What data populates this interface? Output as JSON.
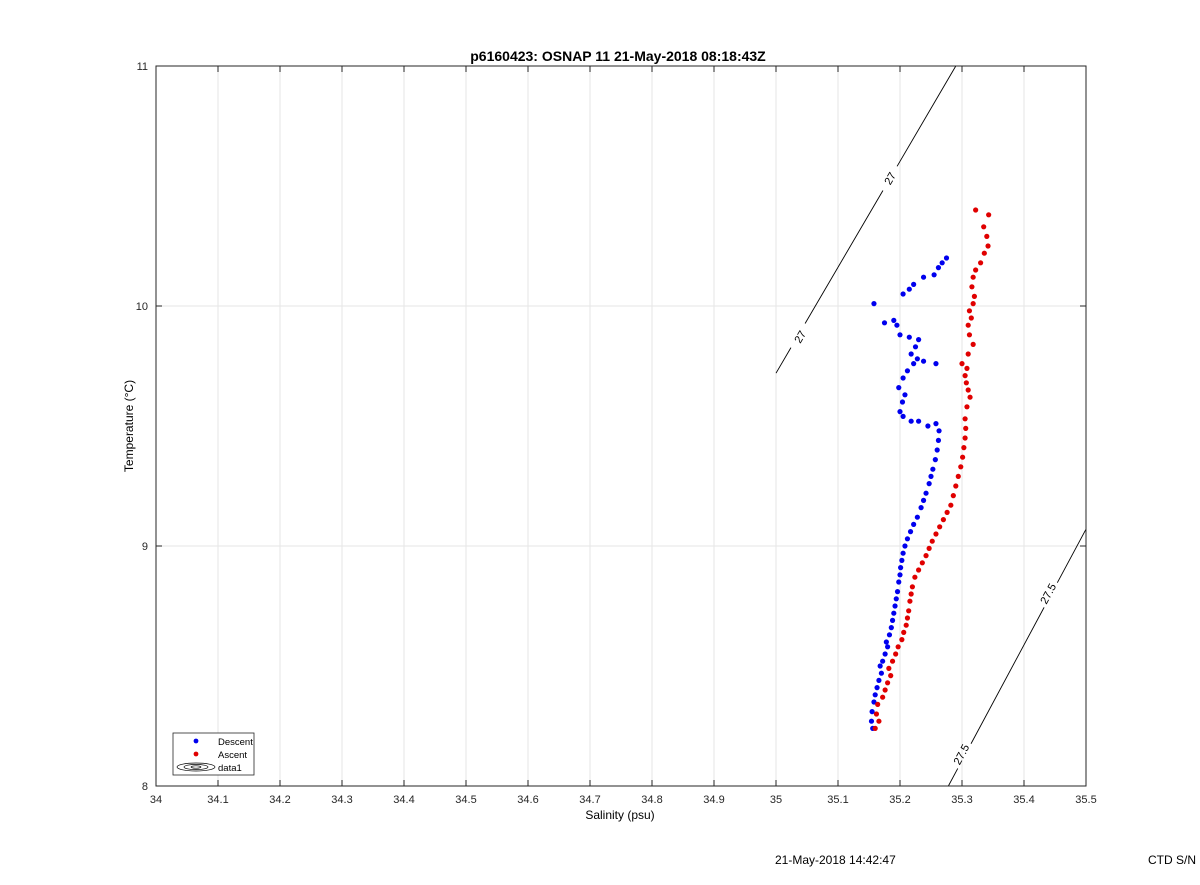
{
  "figure_title": "p6160423: OSNAP 11 21-May-2018 08:18:43Z",
  "footer": {
    "timestamp": "21-May-2018 14:42:47",
    "serial_label": "CTD S/N"
  },
  "colors": {
    "descent": "#0000ee",
    "ascent": "#e00000",
    "grid": "#e6e6e6",
    "axis": "#262626",
    "contour": "#000000"
  },
  "chart_data": {
    "type": "scatter",
    "title": "p6160423: OSNAP 11 21-May-2018 08:18:43Z",
    "xlabel": "Salinity (psu)",
    "ylabel": "Temperature (°C)",
    "xlim": [
      34,
      35.5
    ],
    "ylim": [
      8,
      11
    ],
    "xticks": [
      "34",
      "34.1",
      "34.2",
      "34.3",
      "34.4",
      "34.5",
      "34.6",
      "34.7",
      "34.8",
      "34.9",
      "35",
      "35.1",
      "35.2",
      "35.3",
      "35.4",
      "35.5"
    ],
    "yticks": [
      "8",
      "9",
      "10",
      "11"
    ],
    "grid": true,
    "legend": {
      "placement": "bottom-left",
      "entries": [
        "Descent",
        "Ascent",
        "data1"
      ]
    },
    "series": [
      {
        "name": "Descent",
        "color": "#0000ee",
        "points": [
          [
            35.156,
            8.24
          ],
          [
            35.154,
            8.27
          ],
          [
            35.155,
            8.31
          ],
          [
            35.158,
            8.35
          ],
          [
            35.16,
            8.38
          ],
          [
            35.163,
            8.41
          ],
          [
            35.166,
            8.44
          ],
          [
            35.17,
            8.47
          ],
          [
            35.168,
            8.5
          ],
          [
            35.172,
            8.52
          ],
          [
            35.176,
            8.55
          ],
          [
            35.18,
            8.58
          ],
          [
            35.178,
            8.6
          ],
          [
            35.183,
            8.63
          ],
          [
            35.186,
            8.66
          ],
          [
            35.188,
            8.69
          ],
          [
            35.19,
            8.72
          ],
          [
            35.192,
            8.75
          ],
          [
            35.194,
            8.78
          ],
          [
            35.196,
            8.81
          ],
          [
            35.198,
            8.85
          ],
          [
            35.2,
            8.88
          ],
          [
            35.201,
            8.91
          ],
          [
            35.203,
            8.94
          ],
          [
            35.205,
            8.97
          ],
          [
            35.208,
            9.0
          ],
          [
            35.212,
            9.03
          ],
          [
            35.217,
            9.06
          ],
          [
            35.222,
            9.09
          ],
          [
            35.228,
            9.12
          ],
          [
            35.234,
            9.16
          ],
          [
            35.238,
            9.19
          ],
          [
            35.242,
            9.22
          ],
          [
            35.247,
            9.26
          ],
          [
            35.25,
            9.29
          ],
          [
            35.253,
            9.32
          ],
          [
            35.257,
            9.36
          ],
          [
            35.26,
            9.4
          ],
          [
            35.262,
            9.44
          ],
          [
            35.263,
            9.48
          ],
          [
            35.258,
            9.51
          ],
          [
            35.245,
            9.5
          ],
          [
            35.23,
            9.52
          ],
          [
            35.218,
            9.52
          ],
          [
            35.205,
            9.54
          ],
          [
            35.2,
            9.56
          ],
          [
            35.204,
            9.6
          ],
          [
            35.208,
            9.63
          ],
          [
            35.198,
            9.66
          ],
          [
            35.205,
            9.7
          ],
          [
            35.212,
            9.73
          ],
          [
            35.222,
            9.76
          ],
          [
            35.238,
            9.77
          ],
          [
            35.258,
            9.76
          ],
          [
            35.228,
            9.78
          ],
          [
            35.218,
            9.8
          ],
          [
            35.225,
            9.83
          ],
          [
            35.23,
            9.86
          ],
          [
            35.215,
            9.87
          ],
          [
            35.2,
            9.88
          ],
          [
            35.195,
            9.92
          ],
          [
            35.19,
            9.94
          ],
          [
            35.175,
            9.93
          ],
          [
            35.158,
            10.01
          ],
          [
            35.205,
            10.05
          ],
          [
            35.215,
            10.07
          ],
          [
            35.222,
            10.09
          ],
          [
            35.238,
            10.12
          ],
          [
            35.255,
            10.13
          ],
          [
            35.262,
            10.16
          ],
          [
            35.268,
            10.18
          ],
          [
            35.275,
            10.2
          ]
        ]
      },
      {
        "name": "Ascent",
        "color": "#e00000",
        "points": [
          [
            35.16,
            8.24
          ],
          [
            35.166,
            8.27
          ],
          [
            35.162,
            8.3
          ],
          [
            35.164,
            8.34
          ],
          [
            35.172,
            8.37
          ],
          [
            35.176,
            8.4
          ],
          [
            35.18,
            8.43
          ],
          [
            35.185,
            8.46
          ],
          [
            35.182,
            8.49
          ],
          [
            35.188,
            8.52
          ],
          [
            35.193,
            8.55
          ],
          [
            35.197,
            8.58
          ],
          [
            35.203,
            8.61
          ],
          [
            35.206,
            8.64
          ],
          [
            35.21,
            8.67
          ],
          [
            35.212,
            8.7
          ],
          [
            35.214,
            8.73
          ],
          [
            35.216,
            8.77
          ],
          [
            35.218,
            8.8
          ],
          [
            35.22,
            8.83
          ],
          [
            35.224,
            8.87
          ],
          [
            35.23,
            8.9
          ],
          [
            35.236,
            8.93
          ],
          [
            35.242,
            8.96
          ],
          [
            35.247,
            8.99
          ],
          [
            35.252,
            9.02
          ],
          [
            35.258,
            9.05
          ],
          [
            35.264,
            9.08
          ],
          [
            35.27,
            9.11
          ],
          [
            35.276,
            9.14
          ],
          [
            35.282,
            9.17
          ],
          [
            35.286,
            9.21
          ],
          [
            35.29,
            9.25
          ],
          [
            35.294,
            9.29
          ],
          [
            35.298,
            9.33
          ],
          [
            35.301,
            9.37
          ],
          [
            35.303,
            9.41
          ],
          [
            35.305,
            9.45
          ],
          [
            35.306,
            9.49
          ],
          [
            35.305,
            9.53
          ],
          [
            35.308,
            9.58
          ],
          [
            35.313,
            9.62
          ],
          [
            35.31,
            9.65
          ],
          [
            35.307,
            9.68
          ],
          [
            35.305,
            9.71
          ],
          [
            35.308,
            9.74
          ],
          [
            35.3,
            9.76
          ],
          [
            35.31,
            9.8
          ],
          [
            35.318,
            9.84
          ],
          [
            35.312,
            9.88
          ],
          [
            35.31,
            9.92
          ],
          [
            35.315,
            9.95
          ],
          [
            35.312,
            9.98
          ],
          [
            35.318,
            10.01
          ],
          [
            35.32,
            10.04
          ],
          [
            35.316,
            10.08
          ],
          [
            35.318,
            10.12
          ],
          [
            35.322,
            10.15
          ],
          [
            35.33,
            10.18
          ],
          [
            35.336,
            10.22
          ],
          [
            35.342,
            10.25
          ],
          [
            35.34,
            10.29
          ],
          [
            35.335,
            10.33
          ],
          [
            35.322,
            10.4
          ],
          [
            35.343,
            10.38
          ]
        ]
      }
    ],
    "contours": [
      {
        "label": "27",
        "points": [
          [
            35.0,
            9.72
          ],
          [
            35.29,
            11.0
          ]
        ],
        "label_positions": [
          [
            35.04,
            9.87
          ],
          [
            35.185,
            10.53
          ]
        ]
      },
      {
        "label": "27.5",
        "points": [
          [
            35.278,
            8.0
          ],
          [
            35.5,
            9.07
          ]
        ],
        "label_positions": [
          [
            35.3,
            8.13
          ],
          [
            35.44,
            8.8
          ]
        ]
      }
    ]
  }
}
